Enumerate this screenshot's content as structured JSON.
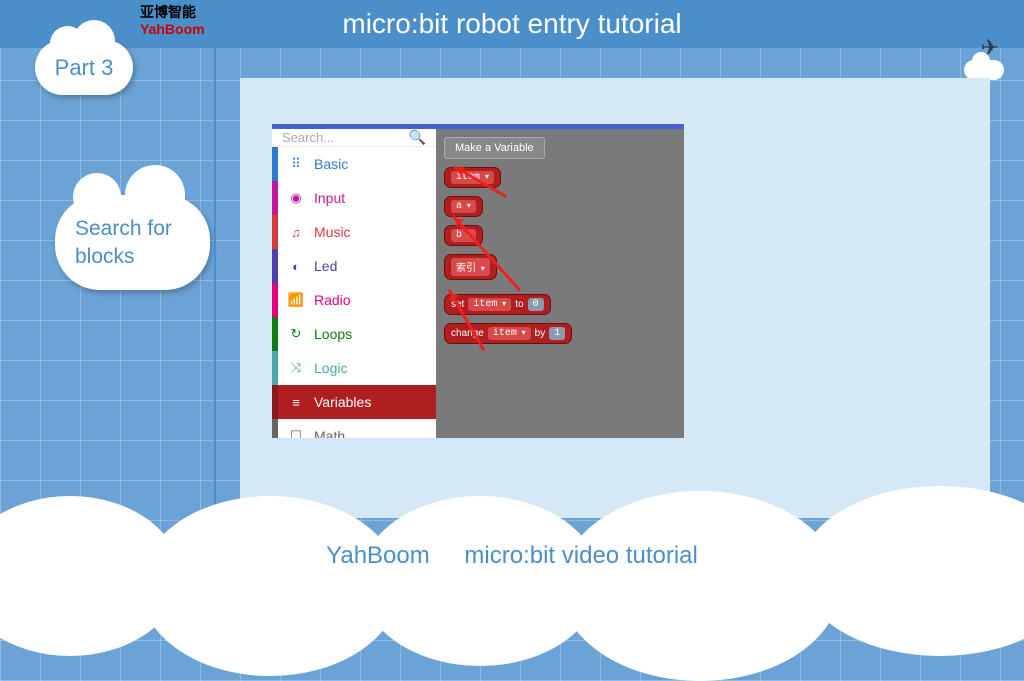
{
  "header": {
    "title": "micro:bit robot entry tutorial",
    "logo_line1": "亚博智能",
    "logo_line2": "YahBoom"
  },
  "part_badge": "Part 3",
  "side_label": "Search for\nblocks",
  "footer": {
    "brand": "YahBoom",
    "subtitle": "micro:bit video tutorial"
  },
  "editor": {
    "search_placeholder": "Search...",
    "categories": [
      {
        "name": "Basic",
        "icon": "⠿",
        "cls": "cat-basic"
      },
      {
        "name": "Input",
        "icon": "◉",
        "cls": "cat-input"
      },
      {
        "name": "Music",
        "icon": "♫",
        "cls": "cat-music"
      },
      {
        "name": "Led",
        "icon": "◐",
        "cls": "cat-led"
      },
      {
        "name": "Radio",
        "icon": "📶",
        "cls": "cat-radio"
      },
      {
        "name": "Loops",
        "icon": "↻",
        "cls": "cat-loops"
      },
      {
        "name": "Logic",
        "icon": "⤨",
        "cls": "cat-logic"
      },
      {
        "name": "Variables",
        "icon": "≡",
        "cls": "cat-variables"
      },
      {
        "name": "Math",
        "icon": "☐",
        "cls": "cat-math"
      }
    ],
    "make_variable": "Make a Variable",
    "var_blocks": [
      "item",
      "a",
      "b",
      "索引"
    ],
    "set_block": {
      "prefix": "set",
      "var": "item",
      "mid": "to",
      "val": "0"
    },
    "change_block": {
      "prefix": "change",
      "var": "item",
      "mid": "by",
      "val": "1"
    }
  },
  "colors": {
    "header_bg": "#4a8fc9",
    "page_bg": "#6ba3d6",
    "panel_bg": "#d5e8f5",
    "variables_red": "#b01f1f"
  }
}
